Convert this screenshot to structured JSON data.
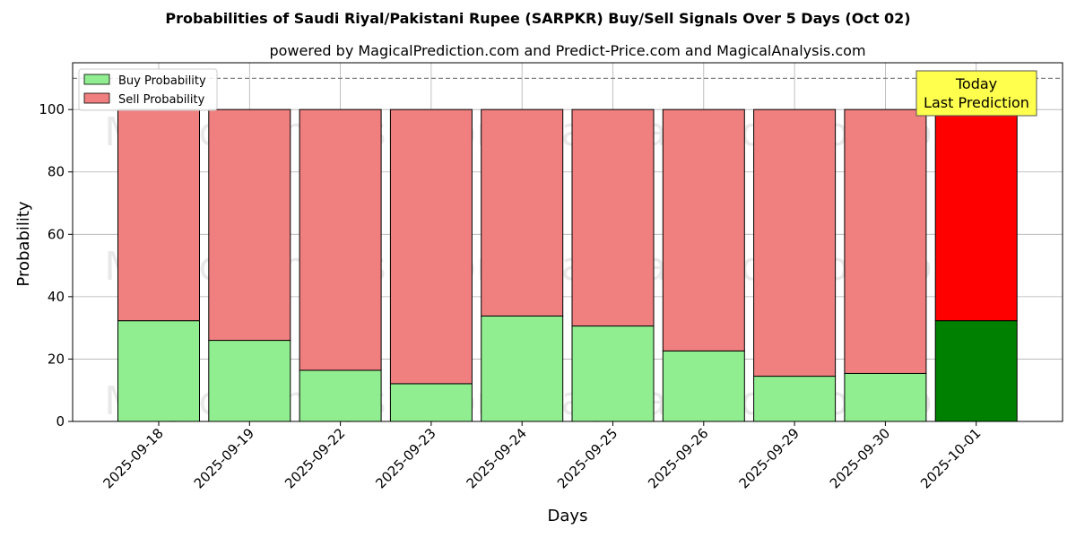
{
  "chart_data": {
    "type": "bar",
    "stacked": true,
    "title": "Probabilities of Saudi Riyal/Pakistani Rupee (SARPKR) Buy/Sell Signals Over 5 Days (Oct 02)",
    "subtitle": "powered by MagicalPrediction.com and Predict-Price.com and MagicalAnalysis.com",
    "xlabel": "Days",
    "ylabel": "Probability",
    "ylim": [
      0,
      115
    ],
    "yticks": [
      0,
      20,
      40,
      60,
      80,
      100
    ],
    "threshold_line": 110,
    "categories": [
      "2025-09-18",
      "2025-09-19",
      "2025-09-22",
      "2025-09-23",
      "2025-09-24",
      "2025-09-25",
      "2025-09-26",
      "2025-09-29",
      "2025-09-30",
      "2025-10-01"
    ],
    "series": [
      {
        "name": "Buy Probability",
        "values": [
          32.3,
          26.0,
          16.4,
          12.1,
          33.8,
          30.6,
          22.6,
          14.5,
          15.4,
          32.3
        ],
        "color": "#90ee90",
        "highlight_color": "#008000"
      },
      {
        "name": "Sell Probability",
        "values": [
          67.7,
          74.0,
          83.6,
          87.9,
          66.2,
          69.4,
          77.4,
          85.5,
          84.6,
          67.7
        ],
        "color": "#f08080",
        "highlight_color": "#ff0000"
      }
    ],
    "highlight_index": 9,
    "legend_position": "top-left",
    "grid": true,
    "annotation": {
      "line1": "Today",
      "line2": "Last Prediction",
      "background": "#ffff4d"
    },
    "watermarks": [
      "MagicalAnalysis.com",
      "MagicalPrediction.com"
    ]
  }
}
